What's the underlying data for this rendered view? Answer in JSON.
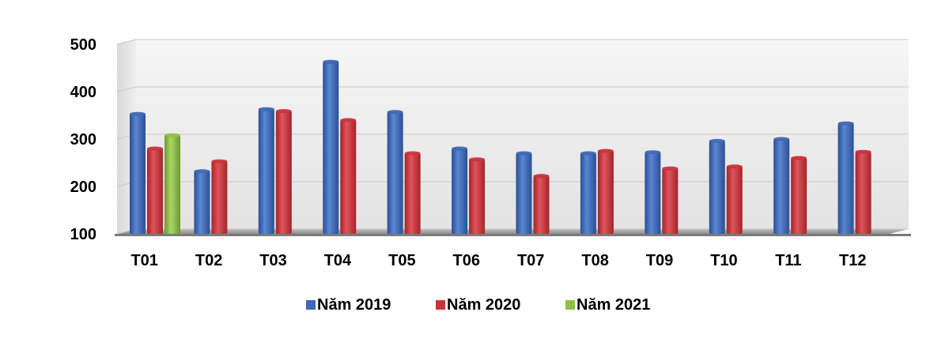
{
  "chart_data": {
    "type": "bar",
    "categories": [
      "T01",
      "T02",
      "T03",
      "T04",
      "T05",
      "T06",
      "T07",
      "T08",
      "T09",
      "T10",
      "T11",
      "T12"
    ],
    "series": [
      {
        "name": "Năm 2019",
        "color": "#3f68b5",
        "values": [
          353,
          232,
          363,
          463,
          357,
          280,
          270,
          270,
          272,
          296,
          300,
          333
        ]
      },
      {
        "name": "Năm 2020",
        "color": "#c9343b",
        "values": [
          280,
          253,
          359,
          340,
          270,
          257,
          222,
          275,
          238,
          242,
          260,
          273
        ]
      },
      {
        "name": "Năm 2021",
        "color": "#8ec045",
        "values": [
          308,
          null,
          null,
          null,
          null,
          null,
          null,
          null,
          null,
          null,
          null,
          null
        ]
      }
    ],
    "yticks": [
      "100",
      "200",
      "300",
      "400",
      "500"
    ],
    "ylim": [
      100,
      500
    ],
    "grid": true,
    "legend_position": "bottom",
    "title": "",
    "xlabel": "",
    "ylabel": ""
  }
}
